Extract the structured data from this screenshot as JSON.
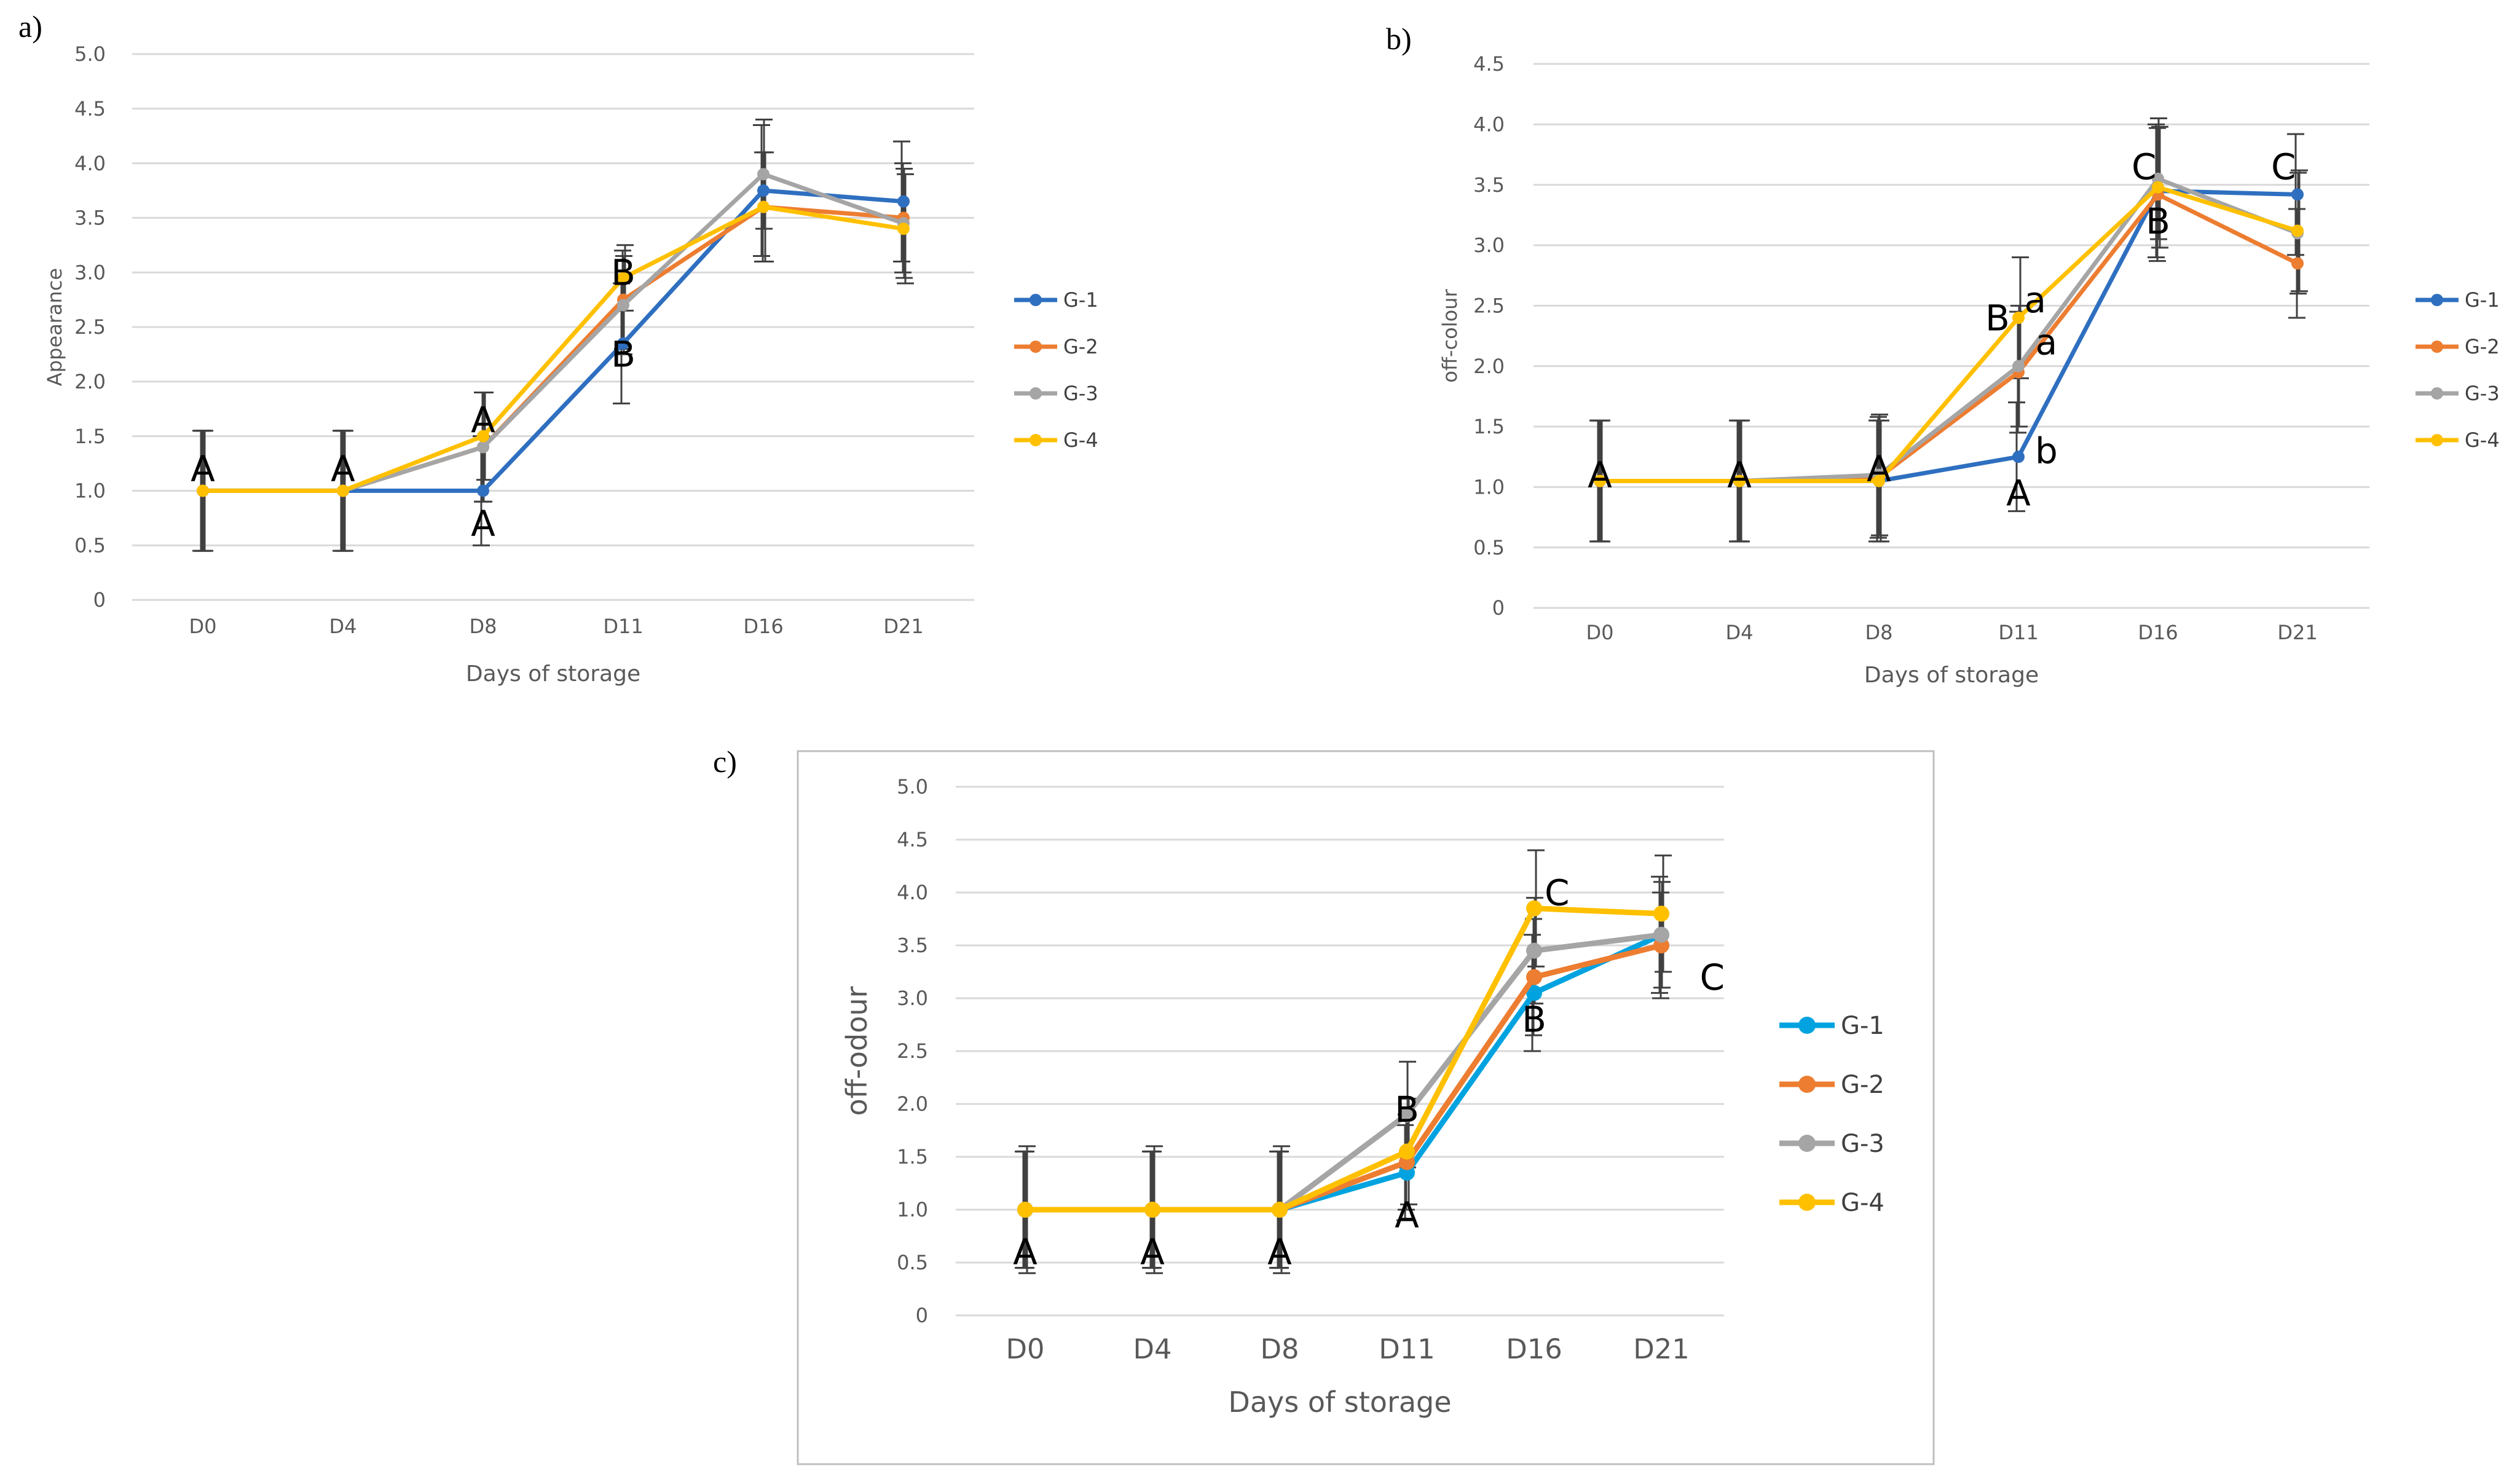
{
  "colors": {
    "G-1_ab": "#2E6FC0",
    "G-1_c": "#00A3E0",
    "G-2": "#ED7D31",
    "G-3": "#A5A5A5",
    "G-4": "#FFC000",
    "grid": "#D9D9D9",
    "frame": "#BFBFBF"
  },
  "chart_data": [
    {
      "panel": "a)",
      "type": "line",
      "ylabel": "Appearance",
      "xlabel": "Days of storage",
      "categories": [
        "D0",
        "D4",
        "D8",
        "D11",
        "D16",
        "D21"
      ],
      "ylim": [
        0,
        5
      ],
      "yticks": [
        "0",
        "0.5",
        "1.0",
        "1.5",
        "2.0",
        "2.5",
        "3.0",
        "3.5",
        "4.0",
        "4.5",
        "5.0"
      ],
      "grid": true,
      "legend": "right",
      "series": [
        {
          "name": "G-1",
          "values": [
            1.0,
            1.0,
            1.0,
            2.35,
            3.75,
            3.65
          ],
          "error": [
            0.55,
            0.55,
            0.5,
            0.55,
            0.6,
            0.55
          ]
        },
        {
          "name": "G-2",
          "values": [
            1.0,
            1.0,
            1.4,
            2.75,
            3.6,
            3.5
          ],
          "error": [
            0.55,
            0.55,
            0.5,
            0.45,
            0.5,
            0.5
          ]
        },
        {
          "name": "G-3",
          "values": [
            1.0,
            1.0,
            1.4,
            2.7,
            3.9,
            3.45
          ],
          "error": [
            0.55,
            0.55,
            0.5,
            0.45,
            0.5,
            0.5
          ]
        },
        {
          "name": "G-4",
          "values": [
            1.0,
            1.0,
            1.5,
            2.95,
            3.6,
            3.4
          ],
          "error": [
            0.55,
            0.55,
            0.4,
            0.3,
            0.5,
            0.5
          ]
        }
      ],
      "annotations": [
        {
          "text": "A",
          "x": "D0",
          "y": 1.2
        },
        {
          "text": "A",
          "x": "D4",
          "y": 1.2
        },
        {
          "text": "A",
          "x": "D8",
          "y": 1.65
        },
        {
          "text": "A",
          "x": "D8",
          "y": 0.7
        },
        {
          "text": "B",
          "x": "D11",
          "y": 3.0
        },
        {
          "text": "B",
          "x": "D11",
          "y": 2.25
        }
      ]
    },
    {
      "panel": "b)",
      "type": "line",
      "ylabel": "off-colour",
      "xlabel": "Days of storage",
      "categories": [
        "D0",
        "D4",
        "D8",
        "D11",
        "D16",
        "D21"
      ],
      "ylim": [
        0,
        4.5
      ],
      "yticks": [
        "0",
        "0.5",
        "1.0",
        "1.5",
        "2.0",
        "2.5",
        "3.0",
        "3.5",
        "4.0",
        "4.5"
      ],
      "grid": true,
      "legend": "right",
      "series": [
        {
          "name": "G-1",
          "values": [
            1.05,
            1.05,
            1.05,
            1.25,
            3.45,
            3.42
          ],
          "error": [
            0.5,
            0.5,
            0.5,
            0.45,
            0.55,
            0.5
          ]
        },
        {
          "name": "G-2",
          "values": [
            1.05,
            1.05,
            1.08,
            1.95,
            3.42,
            2.85
          ],
          "error": [
            0.5,
            0.5,
            0.5,
            0.5,
            0.55,
            0.45
          ]
        },
        {
          "name": "G-3",
          "values": [
            1.05,
            1.05,
            1.1,
            2.0,
            3.55,
            3.1
          ],
          "error": [
            0.5,
            0.5,
            0.5,
            0.5,
            0.5,
            0.5
          ]
        },
        {
          "name": "G-4",
          "values": [
            1.05,
            1.05,
            1.05,
            2.4,
            3.48,
            3.12
          ],
          "error": [
            0.5,
            0.5,
            0.5,
            0.5,
            0.5,
            0.5
          ]
        }
      ],
      "annotations": [
        {
          "text": "A",
          "x": "D0",
          "y": 1.1
        },
        {
          "text": "A",
          "x": "D4",
          "y": 1.1
        },
        {
          "text": "A",
          "x": "D8",
          "y": 1.15
        },
        {
          "text": "B",
          "x": "D11",
          "y": 2.4,
          "dx": -0.15
        },
        {
          "text": "a",
          "x": "D11",
          "y": 2.55,
          "dx": 0.12
        },
        {
          "text": "a",
          "x": "D11",
          "y": 2.2,
          "dx": 0.2
        },
        {
          "text": "b",
          "x": "D11",
          "y": 1.3,
          "dx": 0.2
        },
        {
          "text": "A",
          "x": "D11",
          "y": 0.95
        },
        {
          "text": "C",
          "x": "D16",
          "y": 3.65,
          "dx": -0.1
        },
        {
          "text": "B",
          "x": "D16",
          "y": 3.2
        },
        {
          "text": "C",
          "x": "D21",
          "y": 3.65,
          "dx": -0.1
        }
      ]
    },
    {
      "panel": "c)",
      "type": "line",
      "ylabel": "off-odour",
      "xlabel": "Days of storage",
      "categories": [
        "D0",
        "D4",
        "D8",
        "D11",
        "D16",
        "D21"
      ],
      "ylim": [
        0,
        5
      ],
      "yticks": [
        "0",
        "0.5",
        "1.0",
        "1.5",
        "2.0",
        "2.5",
        "3.0",
        "3.5",
        "4.0",
        "4.5",
        "5.0"
      ],
      "grid": true,
      "legend": "right",
      "series": [
        {
          "name": "G-1",
          "values": [
            1.0,
            1.0,
            1.0,
            1.35,
            3.05,
            3.6
          ],
          "error": [
            0.55,
            0.55,
            0.55,
            0.45,
            0.55,
            0.55
          ]
        },
        {
          "name": "G-2",
          "values": [
            1.0,
            1.0,
            1.0,
            1.45,
            3.2,
            3.5
          ],
          "error": [
            0.55,
            0.55,
            0.55,
            0.45,
            0.55,
            0.5
          ]
        },
        {
          "name": "G-3",
          "values": [
            1.0,
            1.0,
            1.0,
            1.9,
            3.45,
            3.6
          ],
          "error": [
            0.55,
            0.55,
            0.55,
            0.5,
            0.5,
            0.5
          ]
        },
        {
          "name": "G-4",
          "values": [
            1.0,
            1.0,
            1.0,
            1.55,
            3.85,
            3.8
          ],
          "error": [
            0.6,
            0.6,
            0.6,
            0.5,
            0.55,
            0.55
          ]
        }
      ],
      "annotations": [
        {
          "text": "A",
          "x": "D0",
          "y": 0.6
        },
        {
          "text": "A",
          "x": "D4",
          "y": 0.6
        },
        {
          "text": "A",
          "x": "D8",
          "y": 0.6
        },
        {
          "text": "B",
          "x": "D11",
          "y": 1.95
        },
        {
          "text": "A",
          "x": "D11",
          "y": 0.95
        },
        {
          "text": "C",
          "x": "D16",
          "y": 4.0,
          "dx": 0.18
        },
        {
          "text": "B",
          "x": "D16",
          "y": 2.8
        },
        {
          "text": "C",
          "x": "D21",
          "y": 3.2,
          "dx": 0.4
        }
      ]
    }
  ]
}
